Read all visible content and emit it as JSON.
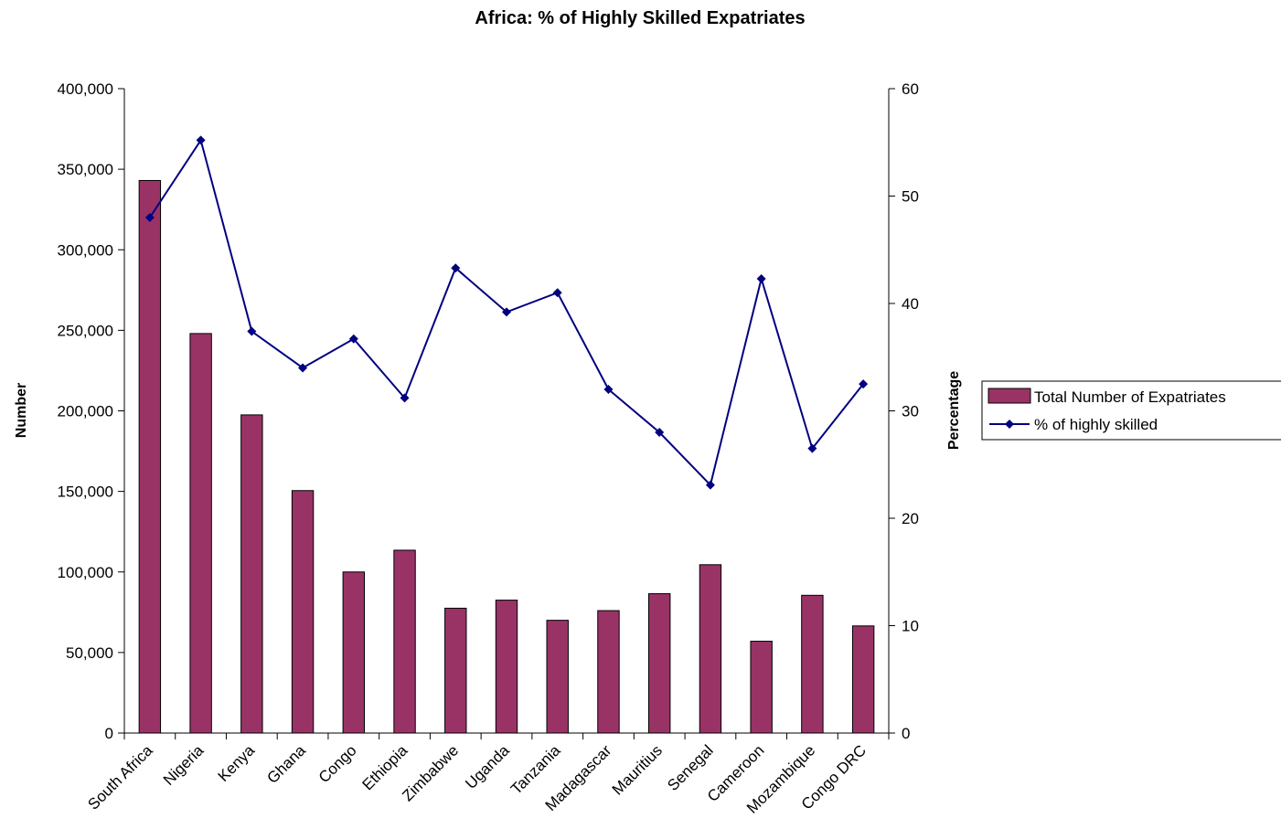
{
  "chart_data": {
    "type": "bar",
    "title": "Africa: % of Highly Skilled Expatriates",
    "categories": [
      "South Africa",
      "Nigeria",
      "Kenya",
      "Ghana",
      "Congo",
      "Ethiopia",
      "Zimbabwe",
      "Uganda",
      "Tanzania",
      "Madagascar",
      "Mauritius",
      "Senegal",
      "Cameroon",
      "Mozambique",
      "Congo DRC"
    ],
    "series": [
      {
        "name": "Total Number of Expatriates",
        "type": "bar",
        "axis": "left",
        "color": "#993366",
        "values": [
          343000,
          248000,
          197500,
          150500,
          100000,
          113500,
          77500,
          82500,
          70000,
          76000,
          86500,
          104500,
          57000,
          85500,
          66500
        ]
      },
      {
        "name": "% of highly skilled",
        "type": "line",
        "axis": "right",
        "color": "#000080",
        "marker": "diamond",
        "values": [
          48,
          55.2,
          37.4,
          34,
          36.7,
          31.2,
          43.3,
          39.2,
          41,
          32,
          28,
          23.1,
          42.3,
          26.5,
          32.5
        ]
      }
    ],
    "ylabel": "Number",
    "y2label": "Percentage",
    "ylim": [
      0,
      400000
    ],
    "y2lim": [
      0,
      60
    ],
    "yticks": [
      "0",
      "50,000",
      "100,000",
      "150,000",
      "200,000",
      "250,000",
      "300,000",
      "350,000",
      "400,000"
    ],
    "y2ticks": [
      "0",
      "10",
      "20",
      "30",
      "40",
      "50",
      "60"
    ],
    "grid": false,
    "legend_position": "right"
  }
}
